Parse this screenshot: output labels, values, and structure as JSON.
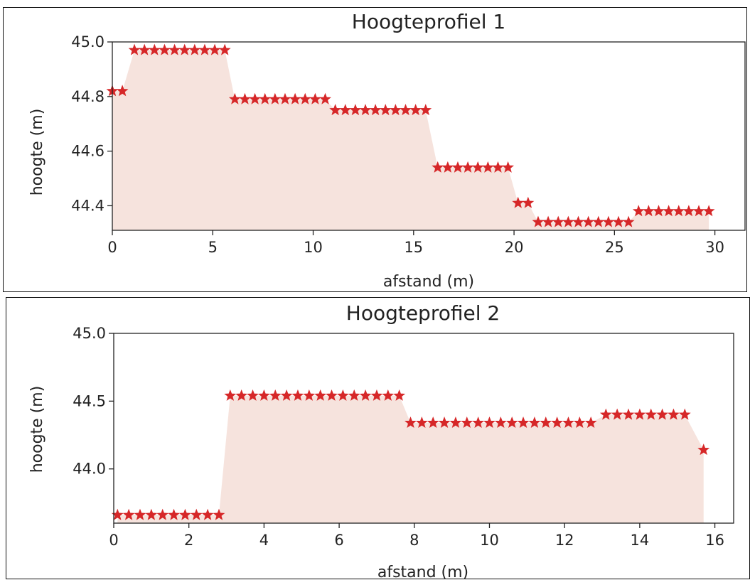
{
  "chart_data": [
    {
      "type": "area",
      "title": "Hoogteprofiel 1",
      "xlabel": "afstand (m)",
      "ylabel": "hoogte (m)",
      "xlim": [
        0,
        31.5
      ],
      "ylim": [
        44.31,
        45.0
      ],
      "x_ticks": [
        0,
        5,
        10,
        15,
        20,
        25,
        30
      ],
      "y_ticks": [
        44.4,
        44.6,
        44.8,
        45.0
      ],
      "y_tick_labels": [
        "44.4",
        "44.6",
        "44.8",
        "45.0"
      ],
      "grid": false,
      "series": [
        {
          "marker": "star",
          "color": "#d62728",
          "fill": "#f6e3dd",
          "x": [
            0,
            0.5,
            1.1,
            1.6,
            2.1,
            2.6,
            3.1,
            3.6,
            4.1,
            4.6,
            5.1,
            5.6,
            6.1,
            6.6,
            7.1,
            7.6,
            8.1,
            8.6,
            9.1,
            9.6,
            10.1,
            10.6,
            11.1,
            11.6,
            12.1,
            12.6,
            13.1,
            13.6,
            14.1,
            14.6,
            15.1,
            15.6,
            16.2,
            16.7,
            17.2,
            17.7,
            18.2,
            18.7,
            19.2,
            19.7,
            20.2,
            20.7,
            21.2,
            21.7,
            22.2,
            22.7,
            23.2,
            23.7,
            24.2,
            24.7,
            25.2,
            25.7,
            26.2,
            26.7,
            27.2,
            27.7,
            28.2,
            28.7,
            29.2,
            29.7
          ],
          "y": [
            44.82,
            44.82,
            44.97,
            44.97,
            44.97,
            44.97,
            44.97,
            44.97,
            44.97,
            44.97,
            44.97,
            44.97,
            44.79,
            44.79,
            44.79,
            44.79,
            44.79,
            44.79,
            44.79,
            44.79,
            44.79,
            44.79,
            44.75,
            44.75,
            44.75,
            44.75,
            44.75,
            44.75,
            44.75,
            44.75,
            44.75,
            44.75,
            44.54,
            44.54,
            44.54,
            44.54,
            44.54,
            44.54,
            44.54,
            44.54,
            44.41,
            44.41,
            44.34,
            44.34,
            44.34,
            44.34,
            44.34,
            44.34,
            44.34,
            44.34,
            44.34,
            44.34,
            44.38,
            44.38,
            44.38,
            44.38,
            44.38,
            44.38,
            44.38,
            44.38
          ]
        }
      ]
    },
    {
      "type": "area",
      "title": "Hoogteprofiel 2",
      "xlabel": "afstand (m)",
      "ylabel": "hoogte (m)",
      "xlim": [
        0,
        16.5
      ],
      "ylim": [
        43.6,
        45.0
      ],
      "x_ticks": [
        0,
        2,
        4,
        6,
        8,
        10,
        12,
        14,
        16
      ],
      "y_ticks": [
        44.0,
        44.5,
        45.0
      ],
      "y_tick_labels": [
        "44.0",
        "44.5",
        "45.0"
      ],
      "grid": false,
      "series": [
        {
          "marker": "star",
          "color": "#d62728",
          "fill": "#f6e3dd",
          "x": [
            0.1,
            0.4,
            0.7,
            1.0,
            1.3,
            1.6,
            1.9,
            2.2,
            2.5,
            2.8,
            3.1,
            3.4,
            3.7,
            4.0,
            4.3,
            4.6,
            4.9,
            5.2,
            5.5,
            5.8,
            6.1,
            6.4,
            6.7,
            7.0,
            7.3,
            7.6,
            7.9,
            8.2,
            8.5,
            8.8,
            9.1,
            9.4,
            9.7,
            10.0,
            10.3,
            10.6,
            10.9,
            11.2,
            11.5,
            11.8,
            12.1,
            12.4,
            12.7,
            13.1,
            13.4,
            13.7,
            14.0,
            14.3,
            14.6,
            14.9,
            15.2,
            15.7
          ],
          "y": [
            43.66,
            43.66,
            43.66,
            43.66,
            43.66,
            43.66,
            43.66,
            43.66,
            43.66,
            43.66,
            44.54,
            44.54,
            44.54,
            44.54,
            44.54,
            44.54,
            44.54,
            44.54,
            44.54,
            44.54,
            44.54,
            44.54,
            44.54,
            44.54,
            44.54,
            44.54,
            44.34,
            44.34,
            44.34,
            44.34,
            44.34,
            44.34,
            44.34,
            44.34,
            44.34,
            44.34,
            44.34,
            44.34,
            44.34,
            44.34,
            44.34,
            44.34,
            44.34,
            44.4,
            44.4,
            44.4,
            44.4,
            44.4,
            44.4,
            44.4,
            44.4,
            44.14
          ]
        }
      ]
    }
  ]
}
